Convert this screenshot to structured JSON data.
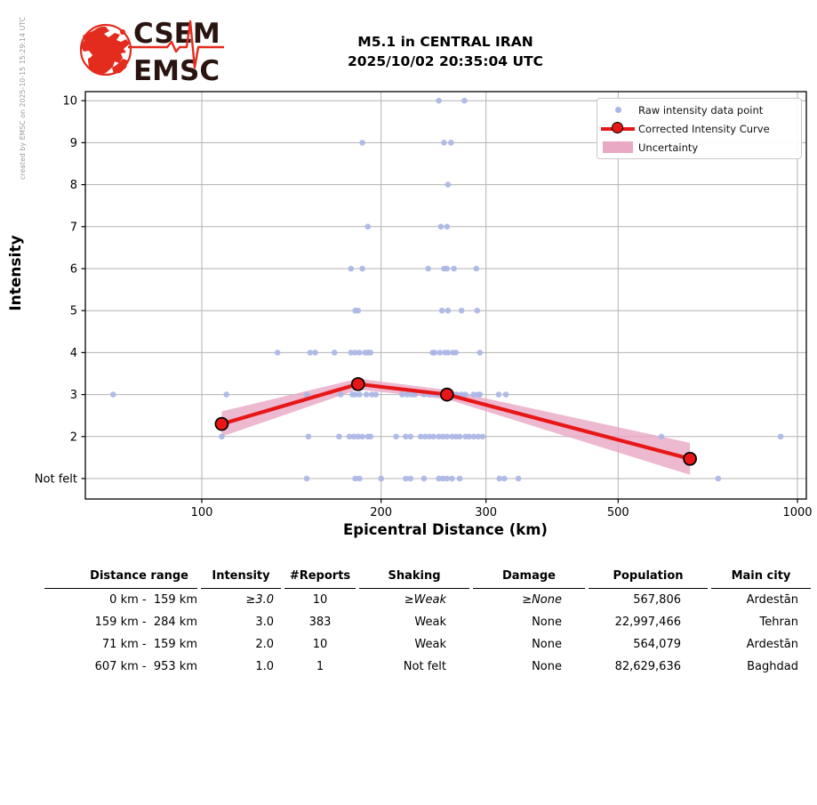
{
  "annotation": {
    "created_by": "created by EMSC on 2025-10-15 15:29:14 UTC"
  },
  "logo": {
    "top": "CSEM",
    "bottom": "EMSC",
    "red": "#e32b1e",
    "dark": "#2a1410"
  },
  "header": {
    "title_line1": "M5.1 in CENTRAL IRAN",
    "title_line2": "2025/10/02 20:35:04 UTC"
  },
  "chart_data": {
    "type": "scatter",
    "title": "M5.1 in CENTRAL IRAN 2025/10/02 20:35:04 UTC",
    "xlabel": "Epicentral Distance (km)",
    "ylabel": "Intensity",
    "x_scale": "log",
    "x_range_km": [
      64,
      1042
    ],
    "x_ticks": [
      100,
      200,
      300,
      500,
      1000
    ],
    "y_ticks": [
      {
        "label": "Not felt",
        "value": 1
      },
      {
        "label": "2",
        "value": 2
      },
      {
        "label": "3",
        "value": 3
      },
      {
        "label": "4",
        "value": 4
      },
      {
        "label": "5",
        "value": 5
      },
      {
        "label": "6",
        "value": 6
      },
      {
        "label": "7",
        "value": 7
      },
      {
        "label": "8",
        "value": 8
      },
      {
        "label": "9",
        "value": 9
      },
      {
        "label": "10",
        "value": 10
      }
    ],
    "grid": true,
    "legend_position": "upper right",
    "series": [
      {
        "name": "Raw intensity data point",
        "type": "scatter",
        "color": "#aab6e6",
        "points_by_intensity": {
          "10": [
            250,
            276
          ],
          "9": [
            186,
            255,
            262
          ],
          "8": [
            259
          ],
          "7": [
            190,
            252,
            258
          ],
          "6": [
            178,
            186,
            240,
            255,
            258,
            265,
            289
          ],
          "5": [
            181,
            183,
            253,
            259,
            273,
            290
          ],
          "4": [
            134,
            152,
            155,
            167,
            178,
            181,
            184,
            188,
            190,
            192,
            244,
            246,
            251,
            256,
            259,
            264,
            267,
            293
          ],
          "3": [
            71,
            110,
            150,
            171,
            179,
            181,
            184,
            189,
            193,
            196,
            217,
            221,
            225,
            228,
            236,
            241,
            246,
            250,
            268,
            273,
            277,
            286,
            291,
            293,
            315,
            324
          ],
          "2": [
            108,
            151,
            170,
            177,
            180,
            183,
            186,
            190,
            192,
            212,
            220,
            224,
            233,
            237,
            241,
            245,
            250,
            254,
            258,
            263,
            267,
            271,
            277,
            281,
            286,
            291,
            296,
            591,
            937
          ],
          "1": [
            150,
            181,
            184,
            200,
            220,
            224,
            236,
            250,
            254,
            258,
            263,
            271,
            316,
            322,
            340,
            736
          ]
        }
      },
      {
        "name": "Corrected Intensity Curve",
        "type": "line",
        "color": "#e81717",
        "points": [
          {
            "distance_km": 108,
            "intensity": 2.3
          },
          {
            "distance_km": 183,
            "intensity": 3.25
          },
          {
            "distance_km": 258,
            "intensity": 3.0
          },
          {
            "distance_km": 660,
            "intensity": 1.47
          }
        ]
      },
      {
        "name": "Uncertainty",
        "type": "band",
        "color": "#e9a8c4",
        "half_width": [
          0.3,
          0.13,
          0.11,
          0.38
        ]
      }
    ]
  },
  "table": {
    "headers": [
      "Distance range",
      "Intensity",
      "#Reports",
      "Shaking",
      "Damage",
      "Population",
      "Main city"
    ],
    "rows": [
      [
        "0 km -  159 km",
        "≥3.0",
        "10",
        "≥Weak",
        "≥None",
        "567,806",
        "Ardestān"
      ],
      [
        "159 km -  284 km",
        "3.0",
        "383",
        "Weak",
        "None",
        "22,997,466",
        "Tehran"
      ],
      [
        "71 km -  159 km",
        "2.0",
        "10",
        "Weak",
        "None",
        "564,079",
        "Ardestān"
      ],
      [
        "607 km -  953 km",
        "1.0",
        "1",
        "Not felt",
        "None",
        "82,629,636",
        "Baghdad"
      ]
    ]
  }
}
